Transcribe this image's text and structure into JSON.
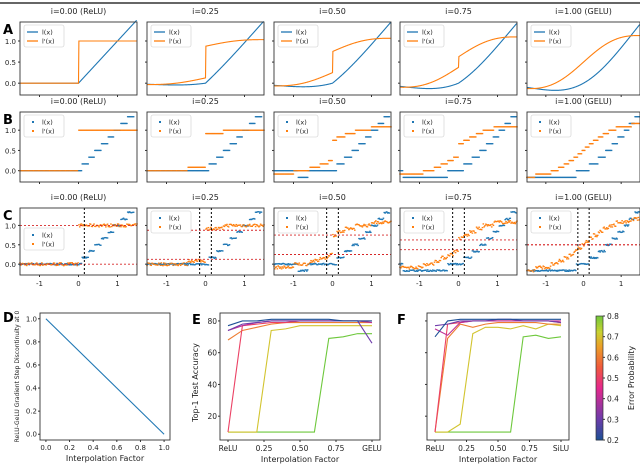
{
  "panel_letters": [
    "A",
    "B",
    "C",
    "D",
    "E",
    "F"
  ],
  "row_titles": [
    "i=0.00 (ReLU)",
    "i=0.25",
    "i=0.50",
    "i=0.75",
    "i=1.00 (GELU)"
  ],
  "interpolation": [
    0,
    0.25,
    0.5,
    0.75,
    1.0
  ],
  "legend": [
    "l(x)",
    "l'(x)"
  ],
  "colors": {
    "l": "#1f77b4",
    "dl": "#ff7f0e",
    "step_line": "#d62728",
    "split_line": "#000000"
  },
  "y_ticks_AB": [
    "0.0",
    "0.5",
    "1.0"
  ],
  "x_ticks_C": [
    "-1",
    "0",
    "1"
  ],
  "chart_data": [
    {
      "panel": "D",
      "type": "line",
      "xlabel": "Interpolation Factor",
      "ylabel": "ReLU-GeLU Gradient Step Discontinuity at 0",
      "x": [
        0,
        1
      ],
      "y": [
        1,
        0
      ],
      "xlim": [
        -0.05,
        1.05
      ],
      "ylim": [
        -0.05,
        1.05
      ],
      "x_ticks": [
        "0.0",
        "0.2",
        "0.4",
        "0.6",
        "0.8",
        "1.0"
      ],
      "y_ticks": [
        "0.0",
        "0.2",
        "0.4",
        "0.6",
        "0.8",
        "1.0"
      ]
    },
    {
      "panel": "E",
      "type": "line",
      "xlabel": "Interpolation Factor",
      "ylabel": "Top-1 Test Accuracy",
      "ylim": [
        5,
        85
      ],
      "x": [
        0,
        0.1,
        0.2,
        0.3,
        0.4,
        0.5,
        0.6,
        0.7,
        0.8,
        0.9,
        1.0
      ],
      "x_ticks": [
        "ReLU",
        "0.25",
        "0.50",
        "0.75",
        "GELU"
      ],
      "y_ticks": [
        "20",
        "40",
        "60",
        "80"
      ],
      "series": [
        {
          "error_probability": 0.2,
          "values": [
            77,
            80,
            80,
            81,
            81,
            81,
            81,
            81,
            80,
            80,
            80
          ]
        },
        {
          "error_probability": 0.3,
          "values": [
            74,
            78,
            79,
            80,
            80,
            80,
            80,
            80,
            80,
            80,
            66
          ]
        },
        {
          "error_probability": 0.4,
          "values": [
            74,
            77,
            79,
            80,
            80,
            80,
            80,
            80,
            80,
            80,
            79
          ]
        },
        {
          "error_probability": 0.5,
          "values": [
            10,
            77,
            78,
            79,
            79,
            80,
            80,
            80,
            80,
            80,
            80
          ]
        },
        {
          "error_probability": 0.6,
          "values": [
            68,
            74,
            76,
            78,
            79,
            79,
            79,
            79,
            79,
            79,
            79
          ]
        },
        {
          "error_probability": 0.7,
          "values": [
            10,
            10,
            10,
            74,
            75,
            77,
            77,
            77,
            77,
            77,
            77
          ]
        },
        {
          "error_probability": 0.8,
          "values": [
            10,
            10,
            10,
            10,
            10,
            10,
            10,
            69,
            70,
            72,
            72
          ]
        }
      ]
    },
    {
      "panel": "F",
      "type": "line",
      "xlabel": "Interpolation Factor",
      "ylim": [
        5,
        85
      ],
      "x": [
        0,
        0.1,
        0.2,
        0.3,
        0.4,
        0.5,
        0.6,
        0.7,
        0.8,
        0.9,
        1.0
      ],
      "x_ticks": [
        "ReLU",
        "0.25",
        "0.50",
        "0.75",
        "SiLU"
      ],
      "series": [
        {
          "error_probability": 0.2,
          "values": [
            70,
            80,
            81,
            81,
            81,
            81,
            81,
            81,
            81,
            81,
            81
          ]
        },
        {
          "error_probability": 0.3,
          "values": [
            77,
            78,
            80,
            80,
            80,
            81,
            81,
            80,
            80,
            80,
            79
          ]
        },
        {
          "error_probability": 0.4,
          "values": [
            75,
            71,
            79,
            80,
            80,
            80,
            80,
            80,
            80,
            80,
            80
          ]
        },
        {
          "error_probability": 0.5,
          "values": [
            10,
            78,
            79,
            80,
            80,
            80,
            80,
            80,
            80,
            80,
            79
          ]
        },
        {
          "error_probability": 0.6,
          "values": [
            10,
            69,
            78,
            76,
            78,
            79,
            79,
            79,
            79,
            78,
            78
          ]
        },
        {
          "error_probability": 0.7,
          "values": [
            10,
            10,
            15,
            72,
            76,
            76,
            75,
            77,
            75,
            78,
            77
          ]
        },
        {
          "error_probability": 0.8,
          "values": [
            10,
            10,
            10,
            10,
            10,
            10,
            10,
            70,
            71,
            69,
            70
          ]
        }
      ]
    }
  ],
  "colorbar": {
    "label": "Error Probability",
    "range": [
      0.2,
      0.8
    ],
    "ticks": [
      "0.2",
      "0.3",
      "0.4",
      "0.5",
      "0.6",
      "0.7",
      "0.8"
    ]
  }
}
